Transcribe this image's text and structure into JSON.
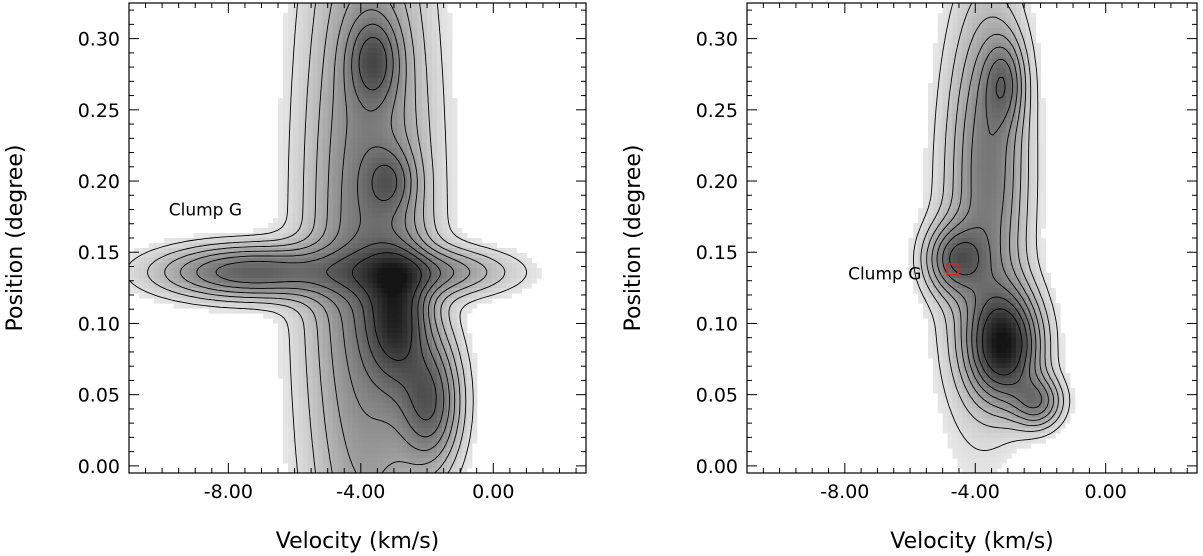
{
  "chart_data": [
    {
      "type": "heatmap",
      "subtype": "position-velocity diagram with contours",
      "xlabel": "Velocity (km/s)",
      "ylabel": "Position (degree)",
      "xlim": [
        -11.0,
        2.8
      ],
      "ylim": [
        -0.005,
        0.325
      ],
      "x_ticks": [
        -8.0,
        -4.0,
        0.0
      ],
      "x_tick_labels": [
        "-8.00",
        "-4.00",
        "0.00"
      ],
      "y_ticks": [
        0.0,
        0.05,
        0.1,
        0.15,
        0.2,
        0.25,
        0.3
      ],
      "y_tick_labels": [
        "0.00",
        "0.05",
        "0.10",
        "0.15",
        "0.20",
        "0.25",
        "0.30"
      ],
      "colormap": "grayscale (white low, black high)",
      "annotations": [
        {
          "text": "Clump G",
          "x": -9.8,
          "y": 0.18
        }
      ],
      "emission_components": [
        {
          "x": -3.8,
          "y": 0.16,
          "sx": 1.2,
          "sy": 0.17,
          "amp": 0.45
        },
        {
          "x": -2.9,
          "y": 0.105,
          "sx": 0.6,
          "sy": 0.03,
          "amp": 0.55
        },
        {
          "x": -1.9,
          "y": 0.045,
          "sx": 0.6,
          "sy": 0.03,
          "amp": 0.5
        },
        {
          "x": -3.6,
          "y": 0.285,
          "sx": 0.5,
          "sy": 0.02,
          "amp": 0.35
        },
        {
          "x": -7.3,
          "y": 0.136,
          "sx": 1.8,
          "sy": 0.012,
          "amp": 0.55
        },
        {
          "x": -2.0,
          "y": 0.136,
          "sx": 1.6,
          "sy": 0.011,
          "amp": 0.35
        },
        {
          "x": -3.1,
          "y": 0.2,
          "sx": 0.5,
          "sy": 0.015,
          "amp": 0.25
        }
      ]
    },
    {
      "type": "heatmap",
      "subtype": "position-velocity diagram with contours",
      "xlabel": "Velocity (km/s)",
      "ylabel": "Position (degree)",
      "xlim": [
        -11.0,
        2.8
      ],
      "ylim": [
        -0.005,
        0.325
      ],
      "x_ticks": [
        -8.0,
        -4.0,
        0.0
      ],
      "x_tick_labels": [
        "-8.00",
        "-4.00",
        "0.00"
      ],
      "y_ticks": [
        0.0,
        0.05,
        0.1,
        0.15,
        0.2,
        0.25,
        0.3
      ],
      "y_tick_labels": [
        "0.00",
        "0.05",
        "0.10",
        "0.15",
        "0.20",
        "0.25",
        "0.30"
      ],
      "colormap": "grayscale (white low, black high)",
      "annotations": [
        {
          "text": "Clump G",
          "x": -7.9,
          "y": 0.135
        }
      ],
      "marker": {
        "shape": "square",
        "color": "#e0201f",
        "x": -4.7,
        "y": 0.138
      },
      "emission_components": [
        {
          "x": -3.1,
          "y": 0.085,
          "sx": 0.7,
          "sy": 0.025,
          "amp": 0.85
        },
        {
          "x": -2.1,
          "y": 0.045,
          "sx": 0.5,
          "sy": 0.012,
          "amp": 0.4
        },
        {
          "x": -4.6,
          "y": 0.145,
          "sx": 0.6,
          "sy": 0.016,
          "amp": 0.45
        },
        {
          "x": -3.5,
          "y": 0.22,
          "sx": 0.7,
          "sy": 0.07,
          "amp": 0.3
        },
        {
          "x": -3.1,
          "y": 0.27,
          "sx": 0.4,
          "sy": 0.02,
          "amp": 0.3
        },
        {
          "x": -3.9,
          "y": 0.17,
          "sx": 0.9,
          "sy": 0.1,
          "amp": 0.18
        }
      ]
    }
  ]
}
